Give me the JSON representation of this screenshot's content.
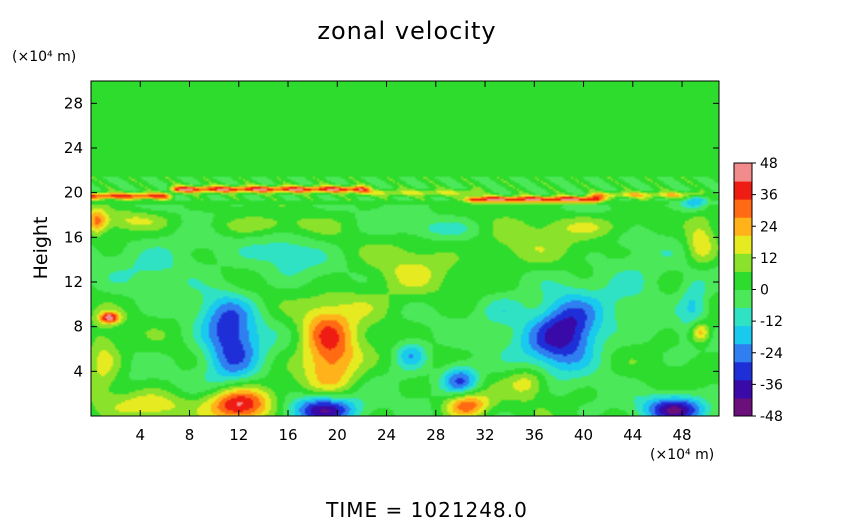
{
  "chart_data": {
    "type": "heatmap",
    "title": "zonal velocity",
    "ylabel": "Height",
    "y_unit": "(×10⁴ m)",
    "x_unit": "(×10⁴ m)",
    "footer": "TIME  =  1021248.0",
    "xlim": [
      0,
      51
    ],
    "ylim": [
      0,
      30
    ],
    "xticks": [
      4,
      8,
      12,
      16,
      20,
      24,
      28,
      32,
      36,
      40,
      44,
      48
    ],
    "yticks": [
      4,
      8,
      12,
      16,
      20,
      24,
      28
    ],
    "colorbar": {
      "min": -48,
      "max": 48,
      "ticks": [
        48,
        36,
        24,
        12,
        0,
        -12,
        -24,
        -36,
        -48
      ],
      "colors": [
        "#6b0f7a",
        "#3a0aa8",
        "#1f2fd8",
        "#2f7ff0",
        "#19c9ee",
        "#2fe2c4",
        "#4be85a",
        "#2edc2e",
        "#8be22a",
        "#e6ea20",
        "#ffb21a",
        "#ff6a12",
        "#ee1c12",
        "#f28c8c"
      ]
    },
    "background_value": 1,
    "features": [
      {
        "x": 11.5,
        "y": 5.5,
        "rx": 2.4,
        "ry": 3.2,
        "v": -30
      },
      {
        "x": 11.0,
        "y": 9.0,
        "rx": 2.2,
        "ry": 2.5,
        "v": -18
      },
      {
        "x": 19.5,
        "y": 5.0,
        "rx": 2.4,
        "ry": 3.0,
        "v": 32
      },
      {
        "x": 19.0,
        "y": 8.0,
        "rx": 2.0,
        "ry": 2.2,
        "v": 16
      },
      {
        "x": 12.0,
        "y": 1.0,
        "rx": 2.6,
        "ry": 1.6,
        "v": 48
      },
      {
        "x": 19.0,
        "y": 0.6,
        "rx": 2.8,
        "ry": 1.3,
        "v": -46
      },
      {
        "x": 30.0,
        "y": 3.2,
        "rx": 1.5,
        "ry": 1.4,
        "v": -32
      },
      {
        "x": 30.5,
        "y": 1.0,
        "rx": 1.8,
        "ry": 1.2,
        "v": 34
      },
      {
        "x": 26.0,
        "y": 5.5,
        "rx": 1.3,
        "ry": 1.3,
        "v": -22
      },
      {
        "x": 38.0,
        "y": 6.8,
        "rx": 3.2,
        "ry": 2.8,
        "v": -30
      },
      {
        "x": 39.0,
        "y": 8.5,
        "rx": 2.5,
        "ry": 2.5,
        "v": -20
      },
      {
        "x": 35.5,
        "y": 3.0,
        "rx": 1.6,
        "ry": 1.3,
        "v": 18
      },
      {
        "x": 47.5,
        "y": 0.6,
        "rx": 2.5,
        "ry": 1.2,
        "v": -40
      },
      {
        "x": 5.0,
        "y": 1.0,
        "rx": 3.0,
        "ry": 1.2,
        "v": 18
      },
      {
        "x": 1.5,
        "y": 8.8,
        "rx": 0.8,
        "ry": 0.5,
        "v": 40
      },
      {
        "x": 1.0,
        "y": 5.0,
        "rx": 1.4,
        "ry": 3.0,
        "v": 16
      },
      {
        "x": 6.0,
        "y": 14.0,
        "rx": 4.0,
        "ry": 2.5,
        "v": -10
      },
      {
        "x": 16.0,
        "y": 14.5,
        "rx": 3.0,
        "ry": 2.0,
        "v": -10
      },
      {
        "x": 26.0,
        "y": 13.0,
        "rx": 3.0,
        "ry": 2.5,
        "v": 12
      },
      {
        "x": 35.0,
        "y": 15.0,
        "rx": 4.0,
        "ry": 2.0,
        "v": 10
      },
      {
        "x": 44.0,
        "y": 12.5,
        "rx": 3.0,
        "ry": 3.0,
        "v": -10
      },
      {
        "x": 49.5,
        "y": 15.5,
        "rx": 1.2,
        "ry": 2.0,
        "v": 20
      },
      {
        "x": 49.0,
        "y": 10.0,
        "rx": 1.2,
        "ry": 2.5,
        "v": -18
      },
      {
        "x": 49.5,
        "y": 7.5,
        "rx": 0.8,
        "ry": 1.0,
        "v": 30
      },
      {
        "x": 22.0,
        "y": 10.0,
        "rx": 3.0,
        "ry": 1.8,
        "v": 10
      },
      {
        "x": 33.5,
        "y": 9.5,
        "rx": 2.0,
        "ry": 1.5,
        "v": -12
      },
      {
        "x": 3.5,
        "y": 17.5,
        "rx": 3.0,
        "ry": 0.9,
        "v": 14
      },
      {
        "x": 14.0,
        "y": 17.0,
        "rx": 5.0,
        "ry": 0.9,
        "v": 10
      },
      {
        "x": 28.0,
        "y": 16.8,
        "rx": 4.0,
        "ry": 0.8,
        "v": -8
      },
      {
        "x": 41.0,
        "y": 17.0,
        "rx": 4.0,
        "ry": 1.0,
        "v": 12
      },
      {
        "x": 49.0,
        "y": 19.0,
        "rx": 1.2,
        "ry": 0.7,
        "v": -20
      },
      {
        "x": 0.5,
        "y": 17.5,
        "rx": 0.8,
        "ry": 1.2,
        "v": 22
      }
    ],
    "jet_layer": [
      {
        "x0": 0,
        "x1": 6,
        "y": 19.7,
        "v": 34
      },
      {
        "x0": 7,
        "x1": 22,
        "y": 20.3,
        "v": 38
      },
      {
        "x0": 22,
        "x1": 31,
        "y": 20.0,
        "v": 14
      },
      {
        "x0": 31,
        "x1": 41,
        "y": 19.4,
        "v": 40
      },
      {
        "x0": 41,
        "x1": 49,
        "y": 19.8,
        "v": 18
      }
    ]
  }
}
